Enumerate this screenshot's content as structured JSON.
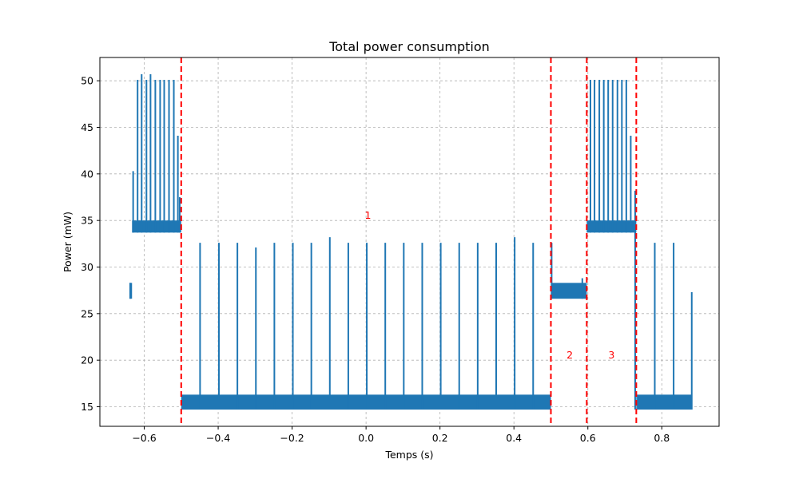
{
  "chart_data": {
    "type": "line",
    "title": "Total power consumption",
    "xlabel": "Temps (s)",
    "ylabel": "Power (mW)",
    "xlim": [
      -0.72,
      0.955
    ],
    "ylim": [
      12.9,
      52.5
    ],
    "xticks": [
      -0.6,
      -0.4,
      -0.2,
      0.0,
      0.2,
      0.4,
      0.6,
      0.8
    ],
    "xtick_labels": [
      "−0.6",
      "−0.4",
      "−0.2",
      "0.0",
      "0.2",
      "0.4",
      "0.6",
      "0.8"
    ],
    "yticks": [
      15,
      20,
      25,
      30,
      35,
      40,
      45,
      50
    ],
    "ytick_labels": [
      "15",
      "20",
      "25",
      "30",
      "35",
      "40",
      "45",
      "50"
    ],
    "grid": true,
    "series_color": "#1f77b4",
    "marker_color": "#ff0000",
    "segments": [
      {
        "x_start": -0.64,
        "x_end": -0.633,
        "base_low": 26.6,
        "base_high": 28.3
      },
      {
        "x_start": -0.633,
        "x_end": -0.5,
        "base_low": 33.7,
        "base_high": 35.0
      },
      {
        "x_start": -0.5,
        "x_end": 0.5,
        "base_low": 14.7,
        "base_high": 16.3
      },
      {
        "x_start": 0.5,
        "x_end": 0.597,
        "base_low": 26.6,
        "base_high": 28.3
      },
      {
        "x_start": 0.597,
        "x_end": 0.731,
        "base_low": 33.7,
        "base_high": 35.0
      },
      {
        "x_start": 0.731,
        "x_end": 0.733,
        "base_low": 14.7,
        "base_high": 16.3
      },
      {
        "x_start": 0.733,
        "x_end": 0.882,
        "base_low": 14.7,
        "base_high": 16.3
      }
    ],
    "spikes": [
      {
        "x": -0.638,
        "y": 28.3
      },
      {
        "x": -0.63,
        "y": 40.3
      },
      {
        "x": -0.618,
        "y": 50.1
      },
      {
        "x": -0.607,
        "y": 50.7
      },
      {
        "x": -0.594,
        "y": 50.1
      },
      {
        "x": -0.583,
        "y": 50.7
      },
      {
        "x": -0.57,
        "y": 50.1
      },
      {
        "x": -0.557,
        "y": 50.1
      },
      {
        "x": -0.546,
        "y": 50.1
      },
      {
        "x": -0.533,
        "y": 50.1
      },
      {
        "x": -0.52,
        "y": 50.1
      },
      {
        "x": -0.509,
        "y": 44.1
      },
      {
        "x": -0.504,
        "y": 37.5
      },
      {
        "x": -0.449,
        "y": 32.6
      },
      {
        "x": -0.398,
        "y": 32.6
      },
      {
        "x": -0.348,
        "y": 32.6
      },
      {
        "x": -0.298,
        "y": 32.1
      },
      {
        "x": -0.248,
        "y": 32.6
      },
      {
        "x": -0.198,
        "y": 32.6
      },
      {
        "x": -0.148,
        "y": 32.6
      },
      {
        "x": -0.098,
        "y": 33.2
      },
      {
        "x": -0.048,
        "y": 32.6
      },
      {
        "x": 0.002,
        "y": 32.6
      },
      {
        "x": 0.052,
        "y": 32.6
      },
      {
        "x": 0.102,
        "y": 32.6
      },
      {
        "x": 0.152,
        "y": 32.6
      },
      {
        "x": 0.202,
        "y": 32.6
      },
      {
        "x": 0.252,
        "y": 32.6
      },
      {
        "x": 0.302,
        "y": 32.6
      },
      {
        "x": 0.352,
        "y": 32.6
      },
      {
        "x": 0.402,
        "y": 33.2
      },
      {
        "x": 0.452,
        "y": 32.6
      },
      {
        "x": 0.502,
        "y": 32.6
      },
      {
        "x": 0.585,
        "y": 28.8
      },
      {
        "x": 0.607,
        "y": 50.1
      },
      {
        "x": 0.618,
        "y": 50.1
      },
      {
        "x": 0.631,
        "y": 50.1
      },
      {
        "x": 0.643,
        "y": 50.1
      },
      {
        "x": 0.655,
        "y": 50.1
      },
      {
        "x": 0.667,
        "y": 50.1
      },
      {
        "x": 0.68,
        "y": 50.1
      },
      {
        "x": 0.692,
        "y": 50.1
      },
      {
        "x": 0.704,
        "y": 50.1
      },
      {
        "x": 0.716,
        "y": 44.1
      },
      {
        "x": 0.728,
        "y": 38.2
      },
      {
        "x": 0.781,
        "y": 32.6
      },
      {
        "x": 0.832,
        "y": 32.6
      },
      {
        "x": 0.881,
        "y": 27.3
      }
    ],
    "vlines": [
      -0.5,
      0.5,
      0.597,
      0.731
    ],
    "annotations": [
      {
        "text": "1",
        "x": 0.005,
        "y": 35.2
      },
      {
        "text": "2",
        "x": 0.551,
        "y": 20.2
      },
      {
        "text": "3",
        "x": 0.664,
        "y": 20.2
      }
    ]
  }
}
